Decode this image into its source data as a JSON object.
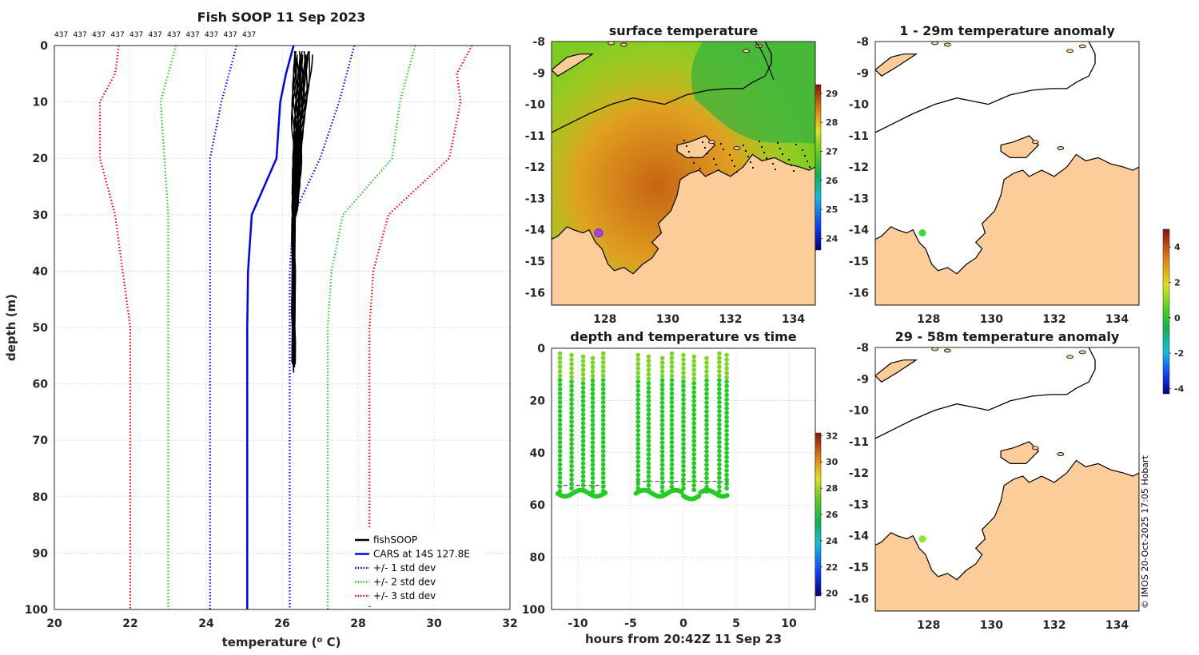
{
  "chart_data": [
    {
      "type": "line",
      "title": "Fish SOOP 11 Sep 2023",
      "xlabel": "temperature (",
      "xlabel_sup": "o",
      "xlabel_tail": " C)",
      "ylabel": "depth (m)",
      "xlim": [
        20,
        32
      ],
      "ylim": [
        0,
        100
      ],
      "y_reversed": true,
      "xticks": [
        20,
        22,
        24,
        26,
        28,
        30,
        32
      ],
      "yticks": [
        0,
        10,
        20,
        30,
        40,
        50,
        60,
        70,
        80,
        90,
        100
      ],
      "grid": true,
      "profile_counts": [
        "437",
        "437",
        "437",
        "437",
        "437",
        "437",
        "437",
        "437",
        "437",
        "437",
        "437"
      ],
      "legend_position": "bottom-right",
      "series": [
        {
          "name": "fishSOOP",
          "color": "#000000",
          "style": "solid",
          "profile_count": 20,
          "temp_range": [
            26.2,
            26.8
          ],
          "depth_range": [
            1,
            57
          ]
        },
        {
          "name": "CARS at 14S 127.8E",
          "color": "#0000ff",
          "style": "solid",
          "depth": [
            0,
            5,
            10,
            20,
            30,
            40,
            50,
            100
          ],
          "temp": [
            26.3,
            26.1,
            25.95,
            25.85,
            25.2,
            25.1,
            25.08,
            25.08
          ]
        },
        {
          "name": "+/- 1 std dev",
          "color": "#0000ff",
          "style": "dotted",
          "depth": [
            0,
            5,
            10,
            20,
            30,
            40,
            50,
            100
          ],
          "lower": [
            24.8,
            24.6,
            24.4,
            24.1,
            24.1,
            24.1,
            24.1,
            24.1
          ],
          "upper": [
            27.9,
            27.7,
            27.5,
            27.0,
            26.3,
            26.2,
            26.2,
            26.2
          ]
        },
        {
          "name": "+/- 2 std dev",
          "color": "#22cc22",
          "style": "dotted",
          "depth": [
            0,
            5,
            10,
            20,
            30,
            40,
            50,
            100
          ],
          "lower": [
            23.2,
            23.0,
            22.8,
            22.9,
            23.0,
            23.0,
            23.0,
            23.0
          ],
          "upper": [
            29.5,
            29.3,
            29.1,
            28.9,
            27.6,
            27.3,
            27.2,
            27.2
          ]
        },
        {
          "name": "+/- 3 std dev",
          "color": "#ff0000",
          "style": "dotted",
          "depth": [
            0,
            5,
            10,
            20,
            30,
            40,
            50,
            100
          ],
          "lower": [
            21.7,
            21.6,
            21.2,
            21.2,
            21.6,
            21.8,
            22.0,
            22.0
          ],
          "upper": [
            31.0,
            30.6,
            30.7,
            30.4,
            28.8,
            28.4,
            28.3,
            28.3
          ]
        }
      ]
    },
    {
      "type": "heatmap",
      "title": "surface temperature",
      "xticks": [
        128,
        130,
        132,
        134
      ],
      "yticks": [
        -8,
        -9,
        -10,
        -11,
        -12,
        -13,
        -14,
        -15,
        -16
      ],
      "xlim": [
        126.3,
        134.7
      ],
      "ylim": [
        -16.4,
        -8
      ],
      "colorbar": {
        "ticks": [
          29,
          28,
          27,
          26,
          25,
          24
        ],
        "range": [
          23.6,
          29.3
        ]
      },
      "marker": {
        "lon": 127.8,
        "lat": -14.1,
        "color": "#cc33cc"
      }
    },
    {
      "type": "scatter",
      "title": "depth and temperature vs time",
      "xlabel": "hours from 20:42Z 11 Sep 23",
      "xlim": [
        -12.5,
        12.5
      ],
      "ylim": [
        0,
        100
      ],
      "y_reversed": true,
      "xticks": [
        -10,
        -5,
        0,
        5,
        10
      ],
      "yticks": [
        0,
        20,
        40,
        60,
        80,
        100
      ],
      "grid": true,
      "profile_times": [
        -11.7,
        -10.6,
        -9.5,
        -8.6,
        -7.6,
        -4.3,
        -3.3,
        -2.0,
        -1.1,
        0.0,
        1.0,
        2.2,
        3.4,
        4.1
      ],
      "profile_depth_range": [
        2,
        56
      ],
      "colorbar": {
        "ticks": [
          32,
          30,
          28,
          26,
          24,
          22,
          20
        ],
        "range": [
          19.8,
          32.2
        ]
      }
    },
    {
      "type": "heatmap",
      "title": "1 - 29m temperature anomaly",
      "xticks": [
        128,
        130,
        132,
        134
      ],
      "yticks": [
        -8,
        -9,
        -10,
        -11,
        -12,
        -13,
        -14,
        -15,
        -16
      ],
      "marker": {
        "lon": 127.8,
        "lat": -14.1,
        "color": "#33dd33"
      },
      "colorbar": {
        "ticks": [
          4,
          2,
          0,
          -2,
          -4
        ],
        "range": [
          -4.3,
          5.0
        ]
      }
    },
    {
      "type": "heatmap",
      "title": "29 - 58m temperature anomaly",
      "xticks": [
        128,
        130,
        132,
        134
      ],
      "yticks": [
        -8,
        -9,
        -10,
        -11,
        -12,
        -13,
        -14,
        -15,
        -16
      ],
      "marker": {
        "lon": 127.8,
        "lat": -14.1,
        "color": "#88ee22"
      }
    }
  ],
  "footer": "© IMOS 20-Oct-2025 17:05 Hobart"
}
